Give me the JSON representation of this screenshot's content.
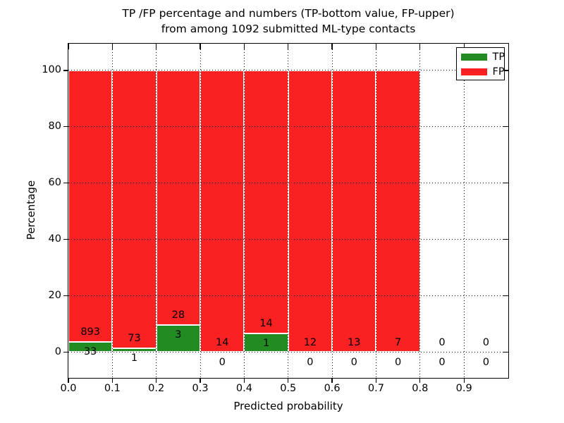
{
  "title": {
    "line1": "TP /FP percentage and numbers (TP-bottom value, FP-upper)",
    "line2": "from among 1092 submitted ML-type contacts"
  },
  "legend": {
    "position": "upper right",
    "items": [
      {
        "label": "TP",
        "color": "#228b22"
      },
      {
        "label": "FP",
        "color": "#f92121"
      }
    ]
  },
  "chart_data": {
    "type": "bar",
    "stacked": true,
    "title": "TP /FP percentage and numbers (TP-bottom value, FP-upper) from among 1092 submitted ML-type contacts",
    "xlabel": "Predicted probability",
    "ylabel": "Percentage",
    "total_submitted_contacts": 1092,
    "bins": [
      0.0,
      0.1,
      0.2,
      0.3,
      0.4,
      0.5,
      0.6,
      0.7,
      0.8,
      0.9
    ],
    "bin_width": 0.1,
    "series": [
      {
        "name": "TP",
        "color": "#228b22",
        "counts": [
          33,
          1,
          3,
          0,
          1,
          0,
          0,
          0,
          0,
          0
        ]
      },
      {
        "name": "FP",
        "color": "#f92121",
        "counts": [
          893,
          73,
          28,
          14,
          14,
          12,
          13,
          7,
          0,
          0
        ]
      }
    ],
    "unit": "percent of bin total (each non-empty stack sums to 100%)",
    "xticks": [
      "0.0",
      "0.1",
      "0.2",
      "0.3",
      "0.4",
      "0.5",
      "0.6",
      "0.7",
      "0.8",
      "0.9"
    ],
    "yticks": [
      "0",
      "20",
      "40",
      "60",
      "80",
      "100"
    ],
    "xlim": [
      0.0,
      1.0
    ],
    "ylim": [
      -9.1,
      109.5
    ],
    "grid": "dotted, drawn above bars",
    "legend_position": "upper right",
    "bar_edge_color": "#ffffff"
  }
}
